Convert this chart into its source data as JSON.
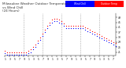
{
  "title_line1": "Milwaukee Weather Outdoor Temperature",
  "title_line2": "vs Wind Chill",
  "title_line3": "(24 Hours)",
  "title_fontsize": 3.0,
  "background_color": "#ffffff",
  "grid_color": "#aaaaaa",
  "temp_color": "#ff0000",
  "chill_color": "#0000ff",
  "legend_temp_label": "Outdoor Temp",
  "legend_chill_label": "Wind Chill",
  "ylim": [
    18,
    52
  ],
  "xlim": [
    0,
    47
  ],
  "time_hours": [
    0,
    1,
    2,
    3,
    4,
    5,
    6,
    7,
    8,
    9,
    10,
    11,
    12,
    13,
    14,
    15,
    16,
    17,
    18,
    19,
    20,
    21,
    22,
    23,
    24,
    25,
    26,
    27,
    28,
    29,
    30,
    31,
    32,
    33,
    34,
    35,
    36,
    37,
    38,
    39,
    40,
    41,
    42,
    43,
    44,
    45,
    46,
    47
  ],
  "temp_values": [
    22,
    21,
    21,
    21,
    21,
    21,
    21,
    21,
    21,
    21,
    22,
    23,
    25,
    27,
    30,
    33,
    36,
    39,
    42,
    45,
    47,
    48,
    48,
    47,
    46,
    44,
    42,
    42,
    42,
    42,
    42,
    42,
    42,
    42,
    41,
    40,
    39,
    38,
    37,
    36,
    35,
    34,
    33,
    32,
    31,
    30,
    29,
    28
  ],
  "chill_values": [
    20,
    19,
    19,
    19,
    19,
    19,
    19,
    19,
    19,
    19,
    20,
    21,
    23,
    25,
    28,
    31,
    34,
    37,
    40,
    43,
    45,
    46,
    46,
    45,
    44,
    42,
    40,
    40,
    40,
    40,
    40,
    40,
    40,
    40,
    39,
    38,
    37,
    36,
    35,
    34,
    33,
    32,
    31,
    30,
    29,
    28,
    27,
    26
  ],
  "xtick_positions": [
    0,
    2,
    4,
    6,
    8,
    10,
    12,
    14,
    16,
    18,
    20,
    22,
    24,
    26,
    28,
    30,
    32,
    34,
    36,
    38,
    40,
    42,
    44,
    46
  ],
  "xtick_labels": [
    "1",
    "3",
    "5",
    "7",
    "9",
    "1",
    "3",
    "5",
    "7",
    "9",
    "1",
    "3",
    "5",
    "7",
    "9",
    "1",
    "3",
    "5",
    "7",
    "9",
    "1",
    "3",
    "5",
    "7"
  ],
  "ytick_vals": [
    21,
    25,
    29,
    33,
    37,
    41,
    45,
    49
  ],
  "vgrid_positions": [
    8,
    16,
    24,
    32,
    40
  ],
  "marker_size": 0.9
}
